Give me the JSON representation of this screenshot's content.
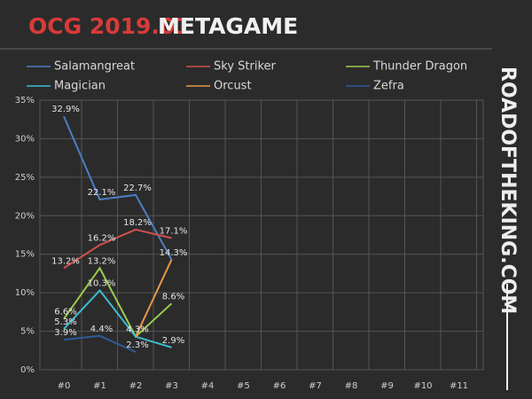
{
  "chart_data": {
    "type": "line",
    "title": "OCG 2019.01",
    "subtitle": "METAGAME",
    "side_text": "ROADOFTHEKING.COM",
    "categories": [
      "#0",
      "#1",
      "#2",
      "#3",
      "#4",
      "#5",
      "#6",
      "#7",
      "#8",
      "#9",
      "#10",
      "#11"
    ],
    "series": [
      {
        "name": "Salamangreat",
        "color": "#4a7fc4",
        "values": [
          32.9,
          22.1,
          22.7,
          14.3,
          null,
          null,
          null,
          null,
          null,
          null,
          null,
          null
        ],
        "value_labels": [
          "32.9%",
          "22.1%",
          "22.7%",
          "14.3%",
          null,
          null,
          null,
          null,
          null,
          null,
          null,
          null
        ]
      },
      {
        "name": "Sky Striker",
        "color": "#d05050",
        "values": [
          13.2,
          16.2,
          18.2,
          17.1,
          null,
          null,
          null,
          null,
          null,
          null,
          null,
          null
        ],
        "value_labels": [
          "13.2%",
          "16.2%",
          "18.2%",
          "17.1%",
          null,
          null,
          null,
          null,
          null,
          null,
          null,
          null
        ]
      },
      {
        "name": "Thunder Dragon",
        "color": "#9ccc4c",
        "values": [
          6.6,
          13.2,
          4.3,
          8.6,
          null,
          null,
          null,
          null,
          null,
          null,
          null,
          null
        ],
        "value_labels": [
          "6.6%",
          "13.2%",
          "4.3%",
          "8.6%",
          null,
          null,
          null,
          null,
          null,
          null,
          null,
          null
        ]
      },
      {
        "name": "Magician",
        "color": "#3cbcd0",
        "values": [
          5.3,
          10.3,
          4.3,
          2.9,
          null,
          null,
          null,
          null,
          null,
          null,
          null,
          null
        ],
        "value_labels": [
          "5.3%",
          "10.3%",
          null,
          "2.9%",
          null,
          null,
          null,
          null,
          null,
          null,
          null,
          null
        ]
      },
      {
        "name": "Orcust",
        "color": "#e8964a",
        "values": [
          null,
          null,
          4.3,
          14.3,
          null,
          null,
          null,
          null,
          null,
          null,
          null,
          null
        ],
        "value_labels": [
          null,
          null,
          null,
          null,
          null,
          null,
          null,
          null,
          null,
          null,
          null,
          null
        ]
      },
      {
        "name": "Zefra",
        "color": "#2e5a9c",
        "values": [
          3.9,
          4.4,
          2.3,
          null,
          null,
          null,
          null,
          null,
          null,
          null,
          null,
          null
        ],
        "value_labels": [
          "3.9%",
          "4.4%",
          "2.3%",
          null,
          null,
          null,
          null,
          null,
          null,
          null,
          null,
          null
        ]
      }
    ],
    "ylim": [
      0,
      35
    ],
    "yticks": [
      {
        "value": 0,
        "label": "0%"
      },
      {
        "value": 5,
        "label": "5%"
      },
      {
        "value": 10,
        "label": "10%"
      },
      {
        "value": 15,
        "label": "15%"
      },
      {
        "value": 20,
        "label": "20%"
      },
      {
        "value": 25,
        "label": "25%"
      },
      {
        "value": 30,
        "label": "30%"
      },
      {
        "value": 35,
        "label": "35%"
      }
    ],
    "grid": true
  }
}
